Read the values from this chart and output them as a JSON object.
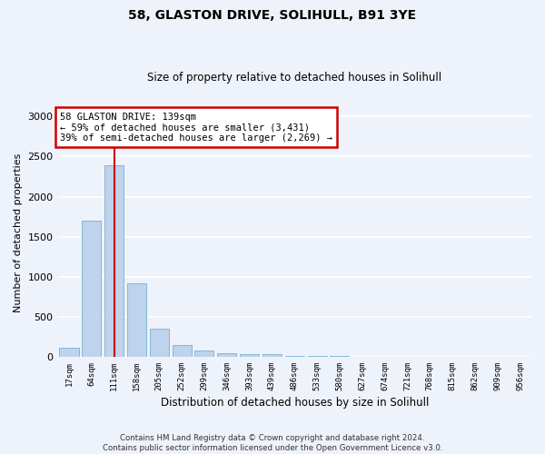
{
  "title": "58, GLASTON DRIVE, SOLIHULL, B91 3YE",
  "subtitle": "Size of property relative to detached houses in Solihull",
  "xlabel": "Distribution of detached houses by size in Solihull",
  "ylabel": "Number of detached properties",
  "bar_labels": [
    "17sqm",
    "64sqm",
    "111sqm",
    "158sqm",
    "205sqm",
    "252sqm",
    "299sqm",
    "346sqm",
    "393sqm",
    "439sqm",
    "486sqm",
    "533sqm",
    "580sqm",
    "627sqm",
    "674sqm",
    "721sqm",
    "768sqm",
    "815sqm",
    "862sqm",
    "909sqm",
    "956sqm"
  ],
  "bar_values": [
    110,
    1700,
    2390,
    920,
    355,
    150,
    80,
    50,
    30,
    30,
    15,
    10,
    10,
    5,
    0,
    0,
    0,
    0,
    0,
    0,
    0
  ],
  "bar_color": "#bed3ec",
  "bar_edge_color": "#7aafd4",
  "marker_index": 2,
  "marker_color": "#cc0000",
  "ylim": [
    0,
    3100
  ],
  "yticks": [
    0,
    500,
    1000,
    1500,
    2000,
    2500,
    3000
  ],
  "annotation_text": "58 GLASTON DRIVE: 139sqm\n← 59% of detached houses are smaller (3,431)\n39% of semi-detached houses are larger (2,269) →",
  "annotation_box_color": "#cc0000",
  "footer_line1": "Contains HM Land Registry data © Crown copyright and database right 2024.",
  "footer_line2": "Contains public sector information licensed under the Open Government Licence v3.0.",
  "bg_color": "#eef2fa",
  "grid_color": "#ffffff"
}
